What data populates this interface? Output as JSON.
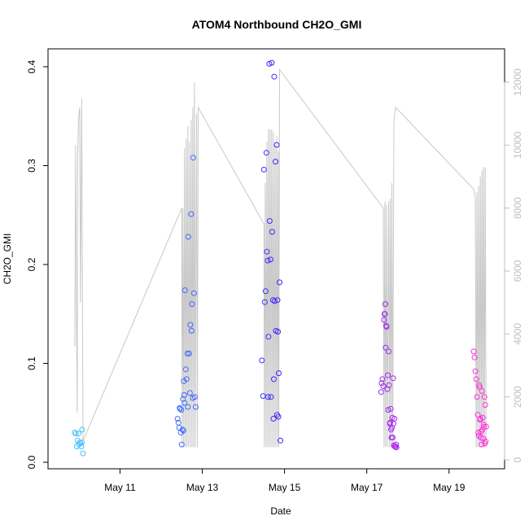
{
  "chart_data": {
    "type": "scatter",
    "title": "ATOM4 Northbound CH2O_GMI",
    "xlabel": "Date",
    "ylabel": "CH2O_GMI",
    "ylim": [
      0,
      0.4
    ],
    "yticks": [
      "0.0",
      "0.1",
      "0.2",
      "0.3",
      "0.4"
    ],
    "xlim_day": [
      9.25,
      20.35
    ],
    "xticks": [
      {
        "day": 11,
        "label": "May 11"
      },
      {
        "day": 13,
        "label": "May 13"
      },
      {
        "day": 15,
        "label": "May 15"
      },
      {
        "day": 17,
        "label": "May 17"
      },
      {
        "day": 19,
        "label": "May 19"
      }
    ],
    "y2lim": [
      0,
      12000
    ],
    "y2ticks": [
      "0",
      "2000",
      "4000",
      "6000",
      "8000",
      "10000",
      "12000"
    ],
    "secondary_series_color": "#c8c8c8",
    "color_start": "#4dc3ff",
    "color_mid": "#3b22ff",
    "color_end": "#ff2fd9",
    "points": [
      [
        9.9,
        0.03
      ],
      [
        9.93,
        0.029
      ],
      [
        9.95,
        0.016
      ],
      [
        9.97,
        0.022
      ],
      [
        9.99,
        0.029
      ],
      [
        10.0,
        0.018
      ],
      [
        10.02,
        0.02
      ],
      [
        10.04,
        0.019
      ],
      [
        10.06,
        0.016
      ],
      [
        10.07,
        0.02
      ],
      [
        10.08,
        0.033
      ],
      [
        10.1,
        0.009
      ],
      [
        12.4,
        0.044
      ],
      [
        12.42,
        0.04
      ],
      [
        12.44,
        0.035
      ],
      [
        12.45,
        0.055
      ],
      [
        12.46,
        0.054
      ],
      [
        12.48,
        0.03
      ],
      [
        12.49,
        0.053
      ],
      [
        12.5,
        0.018
      ],
      [
        12.52,
        0.033
      ],
      [
        12.53,
        0.064
      ],
      [
        12.54,
        0.032
      ],
      [
        12.55,
        0.082
      ],
      [
        12.56,
        0.068
      ],
      [
        12.57,
        0.06
      ],
      [
        12.58,
        0.174
      ],
      [
        12.6,
        0.094
      ],
      [
        12.62,
        0.084
      ],
      [
        12.64,
        0.11
      ],
      [
        12.65,
        0.056
      ],
      [
        12.66,
        0.228
      ],
      [
        12.68,
        0.11
      ],
      [
        12.7,
        0.07
      ],
      [
        12.71,
        0.139
      ],
      [
        12.73,
        0.251
      ],
      [
        12.74,
        0.133
      ],
      [
        12.75,
        0.16
      ],
      [
        12.77,
        0.065
      ],
      [
        12.78,
        0.308
      ],
      [
        12.8,
        0.171
      ],
      [
        12.82,
        0.066
      ],
      [
        12.84,
        0.056
      ],
      [
        14.45,
        0.103
      ],
      [
        14.48,
        0.067
      ],
      [
        14.5,
        0.296
      ],
      [
        14.52,
        0.162
      ],
      [
        14.54,
        0.173
      ],
      [
        14.56,
        0.313
      ],
      [
        14.57,
        0.213
      ],
      [
        14.59,
        0.204
      ],
      [
        14.6,
        0.066
      ],
      [
        14.61,
        0.127
      ],
      [
        14.63,
        0.403
      ],
      [
        14.64,
        0.244
      ],
      [
        14.66,
        0.205
      ],
      [
        14.67,
        0.066
      ],
      [
        14.69,
        0.404
      ],
      [
        14.7,
        0.233
      ],
      [
        14.72,
        0.164
      ],
      [
        14.73,
        0.044
      ],
      [
        14.74,
        0.084
      ],
      [
        14.75,
        0.39
      ],
      [
        14.76,
        0.163
      ],
      [
        14.78,
        0.304
      ],
      [
        14.79,
        0.133
      ],
      [
        14.81,
        0.321
      ],
      [
        14.82,
        0.048
      ],
      [
        14.83,
        0.164
      ],
      [
        14.84,
        0.132
      ],
      [
        14.85,
        0.046
      ],
      [
        14.86,
        0.09
      ],
      [
        14.88,
        0.182
      ],
      [
        14.9,
        0.022
      ],
      [
        17.35,
        0.071
      ],
      [
        17.36,
        0.08
      ],
      [
        17.38,
        0.084
      ],
      [
        17.4,
        0.077
      ],
      [
        17.42,
        0.144
      ],
      [
        17.43,
        0.15
      ],
      [
        17.44,
        0.15
      ],
      [
        17.45,
        0.16
      ],
      [
        17.46,
        0.116
      ],
      [
        17.47,
        0.138
      ],
      [
        17.48,
        0.137
      ],
      [
        17.5,
        0.074
      ],
      [
        17.51,
        0.088
      ],
      [
        17.52,
        0.053
      ],
      [
        17.53,
        0.112
      ],
      [
        17.54,
        0.078
      ],
      [
        17.56,
        0.039
      ],
      [
        17.57,
        0.04
      ],
      [
        17.58,
        0.054
      ],
      [
        17.59,
        0.033
      ],
      [
        17.6,
        0.025
      ],
      [
        17.61,
        0.035
      ],
      [
        17.62,
        0.045
      ],
      [
        17.63,
        0.025
      ],
      [
        17.64,
        0.085
      ],
      [
        17.65,
        0.039
      ],
      [
        17.66,
        0.017
      ],
      [
        17.67,
        0.044
      ],
      [
        17.68,
        0.016
      ],
      [
        17.7,
        0.016
      ],
      [
        17.71,
        0.018
      ],
      [
        17.72,
        0.015
      ],
      [
        19.6,
        0.112
      ],
      [
        19.62,
        0.106
      ],
      [
        19.64,
        0.092
      ],
      [
        19.66,
        0.084
      ],
      [
        19.68,
        0.066
      ],
      [
        19.7,
        0.048
      ],
      [
        19.71,
        0.03
      ],
      [
        19.72,
        0.027
      ],
      [
        19.73,
        0.078
      ],
      [
        19.74,
        0.076
      ],
      [
        19.75,
        0.043
      ],
      [
        19.76,
        0.044
      ],
      [
        19.77,
        0.025
      ],
      [
        19.78,
        0.031
      ],
      [
        19.79,
        0.018
      ],
      [
        19.8,
        0.072
      ],
      [
        19.81,
        0.033
      ],
      [
        19.82,
        0.045
      ],
      [
        19.83,
        0.024
      ],
      [
        19.84,
        0.038
      ],
      [
        19.85,
        0.036
      ],
      [
        19.86,
        0.066
      ],
      [
        19.87,
        0.019
      ],
      [
        19.88,
        0.058
      ],
      [
        19.89,
        0.021
      ],
      [
        19.9,
        0.036
      ]
    ],
    "secondary_line": [
      [
        9.9,
        3600
      ],
      [
        9.92,
        10000
      ],
      [
        9.94,
        4800
      ],
      [
        9.96,
        1500
      ],
      [
        9.97,
        9600
      ],
      [
        9.99,
        10800
      ],
      [
        10.02,
        11200
      ],
      [
        10.04,
        5000
      ],
      [
        10.07,
        11500
      ],
      [
        10.1,
        600
      ],
      [
        12.5,
        8000
      ],
      [
        12.51,
        400
      ],
      [
        12.53,
        8000
      ],
      [
        12.55,
        400
      ],
      [
        12.57,
        9900
      ],
      [
        12.59,
        400
      ],
      [
        12.61,
        10200
      ],
      [
        12.63,
        400
      ],
      [
        12.65,
        10600
      ],
      [
        12.67,
        400
      ],
      [
        12.69,
        10100
      ],
      [
        12.71,
        400
      ],
      [
        12.73,
        10800
      ],
      [
        12.75,
        400
      ],
      [
        12.77,
        11200
      ],
      [
        12.79,
        400
      ],
      [
        12.81,
        12000
      ],
      [
        12.83,
        400
      ],
      [
        12.86,
        11000
      ],
      [
        12.88,
        400
      ],
      [
        12.9,
        11200
      ],
      [
        14.5,
        7500
      ],
      [
        14.51,
        400
      ],
      [
        14.53,
        8800
      ],
      [
        14.55,
        400
      ],
      [
        14.57,
        10100
      ],
      [
        14.59,
        400
      ],
      [
        14.61,
        10500
      ],
      [
        14.63,
        400
      ],
      [
        14.65,
        10500
      ],
      [
        14.67,
        400
      ],
      [
        14.69,
        10500
      ],
      [
        14.71,
        400
      ],
      [
        14.73,
        10400
      ],
      [
        14.75,
        400
      ],
      [
        14.77,
        10000
      ],
      [
        14.79,
        400
      ],
      [
        14.81,
        10300
      ],
      [
        14.83,
        400
      ],
      [
        14.85,
        9800
      ],
      [
        14.86,
        400
      ],
      [
        14.88,
        12400
      ],
      [
        17.4,
        8000
      ],
      [
        17.42,
        400
      ],
      [
        17.44,
        8200
      ],
      [
        17.46,
        400
      ],
      [
        17.48,
        8100
      ],
      [
        17.5,
        400
      ],
      [
        17.53,
        8200
      ],
      [
        17.55,
        400
      ],
      [
        17.57,
        8300
      ],
      [
        17.59,
        400
      ],
      [
        17.61,
        8800
      ],
      [
        17.63,
        400
      ],
      [
        17.66,
        10800
      ],
      [
        17.68,
        11000
      ],
      [
        17.7,
        11200
      ],
      [
        19.6,
        8600
      ],
      [
        19.62,
        8500
      ],
      [
        19.64,
        8300
      ],
      [
        19.66,
        400
      ],
      [
        19.68,
        8500
      ],
      [
        19.7,
        400
      ],
      [
        19.72,
        8700
      ],
      [
        19.74,
        400
      ],
      [
        19.76,
        9000
      ],
      [
        19.78,
        400
      ],
      [
        19.8,
        9200
      ],
      [
        19.82,
        400
      ],
      [
        19.84,
        9300
      ],
      [
        19.86,
        400
      ],
      [
        19.88,
        9300
      ],
      [
        19.9,
        400
      ]
    ]
  }
}
